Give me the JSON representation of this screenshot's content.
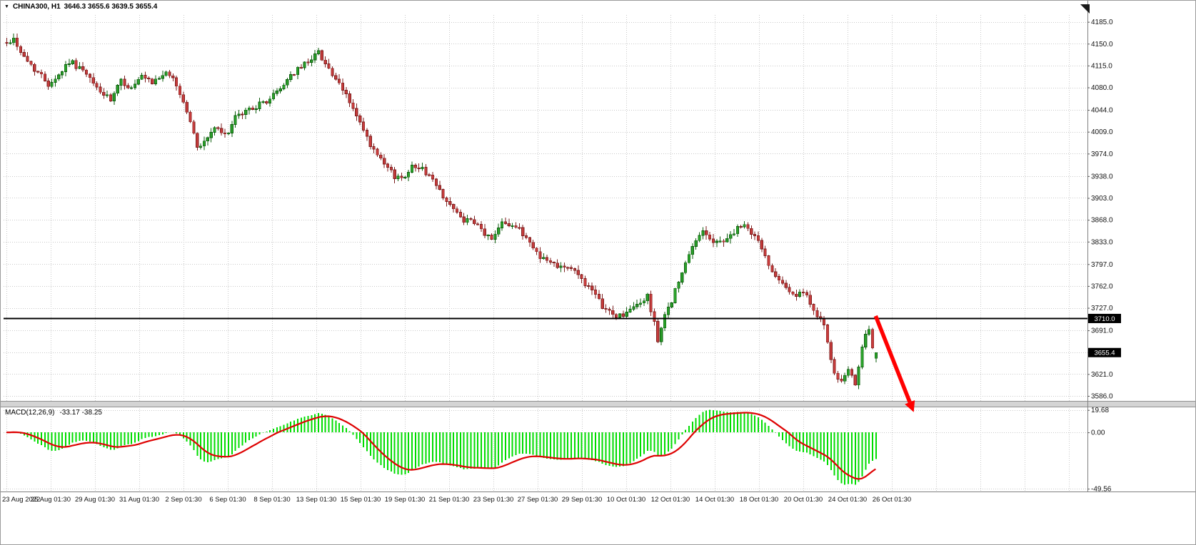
{
  "header": {
    "symbol_timeframe": "CHINA300, H1",
    "ohlc_text": "3646.3 3655.6 3639.5 3655.4"
  },
  "chart_data": {
    "type": "candlestick",
    "symbol": "CHINA300",
    "timeframe": "H1",
    "current_bar": {
      "open": 3646.3,
      "high": 3655.6,
      "low": 3639.5,
      "close": 3655.4
    },
    "price_axis": {
      "ticks": [
        4185.0,
        4150.0,
        4115.0,
        4080.0,
        4044.0,
        4009.0,
        3974.0,
        3938.0,
        3903.0,
        3868.0,
        3833.0,
        3797.0,
        3762.0,
        3727.0,
        3691.0,
        3656.0,
        3621.0,
        3586.0
      ],
      "range": [
        3578,
        4196
      ],
      "line_price": 3710.0,
      "line_price_label": "3710.0",
      "current_price": 3655.4,
      "current_price_label": "3655.4"
    },
    "time_axis": {
      "labels": [
        "23 Aug 2022",
        "25 Aug 01:30",
        "29 Aug 01:30",
        "31 Aug 01:30",
        "2 Sep 01:30",
        "6 Sep 01:30",
        "8 Sep 01:30",
        "13 Sep 01:30",
        "15 Sep 01:30",
        "19 Sep 01:30",
        "21 Sep 01:30",
        "23 Sep 01:30",
        "27 Sep 01:30",
        "29 Sep 01:30",
        "10 Oct 01:30",
        "12 Oct 01:30",
        "14 Oct 01:30",
        "18 Oct 01:30",
        "20 Oct 01:30",
        "24 Oct 01:30",
        "26 Oct 01:30"
      ]
    },
    "bars_total": 252,
    "price_path": [
      [
        0,
        4152
      ],
      [
        2,
        4158
      ],
      [
        5,
        4128
      ],
      [
        8,
        4110
      ],
      [
        12,
        4086
      ],
      [
        15,
        4100
      ],
      [
        18,
        4122
      ],
      [
        21,
        4112
      ],
      [
        25,
        4086
      ],
      [
        28,
        4068
      ],
      [
        30,
        4058
      ],
      [
        33,
        4090
      ],
      [
        36,
        4078
      ],
      [
        39,
        4096
      ],
      [
        42,
        4086
      ],
      [
        45,
        4102
      ],
      [
        48,
        4096
      ],
      [
        50,
        4070
      ],
      [
        52,
        4042
      ],
      [
        55,
        3986
      ],
      [
        57,
        3992
      ],
      [
        60,
        4016
      ],
      [
        63,
        4002
      ],
      [
        66,
        4030
      ],
      [
        70,
        4046
      ],
      [
        73,
        4052
      ],
      [
        76,
        4062
      ],
      [
        79,
        4078
      ],
      [
        82,
        4100
      ],
      [
        85,
        4112
      ],
      [
        88,
        4128
      ],
      [
        90,
        4136
      ],
      [
        92,
        4120
      ],
      [
        95,
        4090
      ],
      [
        98,
        4068
      ],
      [
        100,
        4046
      ],
      [
        103,
        4010
      ],
      [
        105,
        3986
      ],
      [
        108,
        3962
      ],
      [
        110,
        3950
      ],
      [
        112,
        3938
      ],
      [
        114,
        3934
      ],
      [
        116,
        3948
      ],
      [
        118,
        3956
      ],
      [
        120,
        3948
      ],
      [
        122,
        3940
      ],
      [
        124,
        3922
      ],
      [
        127,
        3900
      ],
      [
        129,
        3884
      ],
      [
        131,
        3870
      ],
      [
        134,
        3864
      ],
      [
        136,
        3858
      ],
      [
        138,
        3846
      ],
      [
        140,
        3836
      ],
      [
        143,
        3868
      ],
      [
        145,
        3862
      ],
      [
        147,
        3856
      ],
      [
        150,
        3840
      ],
      [
        152,
        3824
      ],
      [
        154,
        3810
      ],
      [
        156,
        3802
      ],
      [
        158,
        3798
      ],
      [
        161,
        3794
      ],
      [
        163,
        3790
      ],
      [
        166,
        3774
      ],
      [
        168,
        3760
      ],
      [
        170,
        3744
      ],
      [
        172,
        3730
      ],
      [
        174,
        3720
      ],
      [
        176,
        3714
      ],
      [
        178,
        3716
      ],
      [
        180,
        3722
      ],
      [
        182,
        3732
      ],
      [
        185,
        3744
      ],
      [
        187,
        3706
      ],
      [
        188,
        3674
      ],
      [
        189,
        3690
      ],
      [
        190,
        3714
      ],
      [
        192,
        3740
      ],
      [
        194,
        3768
      ],
      [
        196,
        3796
      ],
      [
        198,
        3824
      ],
      [
        200,
        3844
      ],
      [
        201,
        3854
      ],
      [
        203,
        3838
      ],
      [
        204,
        3830
      ],
      [
        206,
        3834
      ],
      [
        208,
        3838
      ],
      [
        210,
        3848
      ],
      [
        212,
        3858
      ],
      [
        214,
        3854
      ],
      [
        215,
        3848
      ],
      [
        217,
        3834
      ],
      [
        218,
        3820
      ],
      [
        220,
        3798
      ],
      [
        221,
        3786
      ],
      [
        223,
        3776
      ],
      [
        224,
        3770
      ],
      [
        226,
        3754
      ],
      [
        227,
        3746
      ],
      [
        229,
        3748
      ],
      [
        230,
        3750
      ],
      [
        232,
        3736
      ],
      [
        233,
        3726
      ],
      [
        235,
        3708
      ],
      [
        236,
        3698
      ],
      [
        237,
        3668
      ],
      [
        238,
        3640
      ],
      [
        239,
        3622
      ],
      [
        241,
        3606
      ],
      [
        242,
        3618
      ],
      [
        243,
        3626
      ],
      [
        244,
        3614
      ],
      [
        245,
        3608
      ],
      [
        247,
        3664
      ],
      [
        248,
        3680
      ],
      [
        249,
        3694
      ],
      [
        250,
        3662
      ],
      [
        251,
        3650
      ]
    ],
    "indicator": {
      "name": "MACD(12,26,9)",
      "values_text": "-33.17 -38.25",
      "macd_value": -33.17,
      "signal_value": -38.25,
      "fast": 12,
      "slow": 26,
      "signal": 9,
      "axis_ticks": [
        19.68,
        0.0,
        -49.56
      ],
      "range": [
        22,
        -52
      ]
    },
    "annotation_arrow": {
      "from": {
        "bar": 251,
        "price": 3714
      },
      "to": {
        "bar": 262,
        "price": 3560
      }
    },
    "colors": {
      "bull_fill": "#2aa12a",
      "bull_stroke": "#0e5e0e",
      "bear_fill": "#c83c3c",
      "bear_stroke": "#7c1e1e",
      "grid": "#c9c9c9",
      "macd_histogram": "#00dc00",
      "macd_signal": "#de0202",
      "hline": "#000000",
      "price_tag_bg": "#000000",
      "price_tag_text": "#ffffff",
      "arrow": "#ff0000",
      "axis_text": "#111111",
      "separator_bg": "#d4d4d4",
      "separator_edge": "#909090"
    }
  }
}
